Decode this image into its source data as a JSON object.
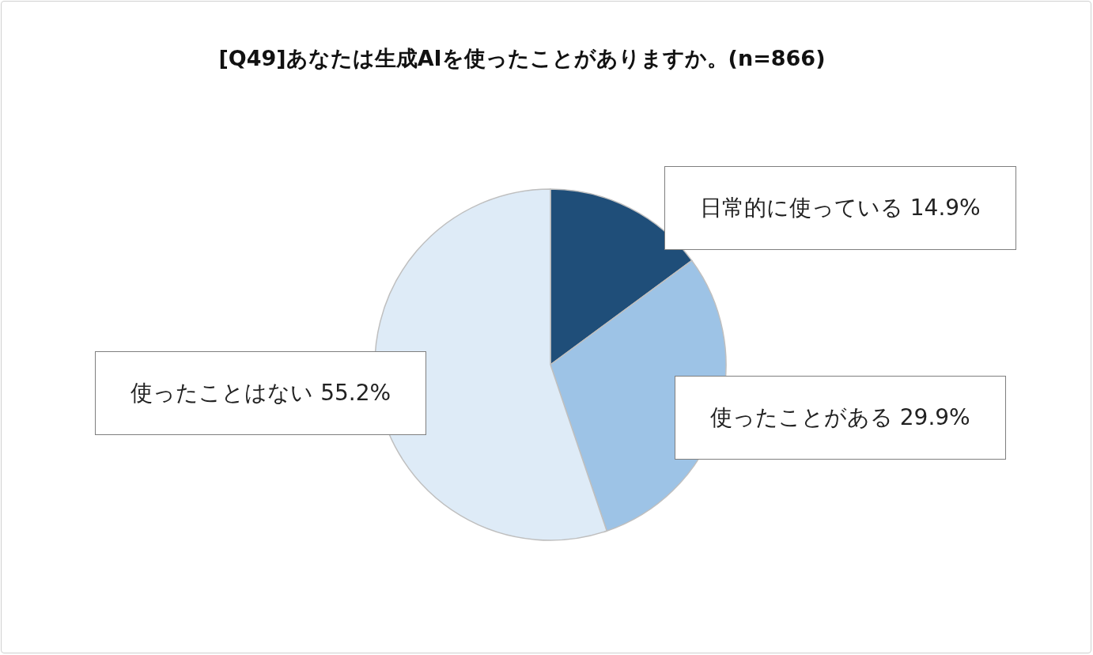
{
  "chart_data": {
    "type": "pie",
    "title": "[Q49]あなたは生成AIを使ったことがありますか。(n=866)",
    "categories": [
      "日常的に使っている",
      "使ったことがある",
      "使ったことはない"
    ],
    "values": [
      14.9,
      29.9,
      55.2
    ],
    "value_labels": [
      "14.9%",
      "29.9%",
      "55.2%"
    ],
    "colors": [
      "#1f4e79",
      "#9dc3e6",
      "#deebf7"
    ],
    "legend": false
  }
}
